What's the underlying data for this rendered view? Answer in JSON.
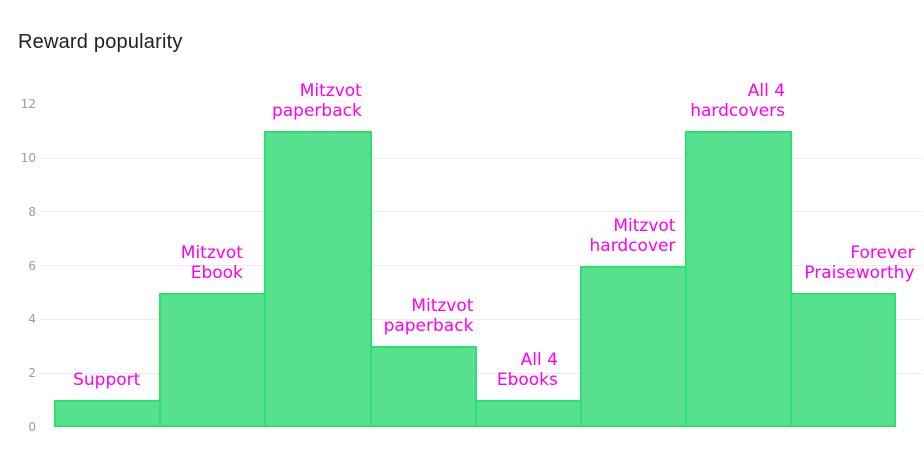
{
  "page": {
    "title": "Reward popularity"
  },
  "chart_data": {
    "type": "bar",
    "title": "Reward popularity",
    "categories": [
      "Support",
      "Mitzvot Ebook",
      "Mitzvot paperback",
      "Mitzvot paperback",
      "All 4 Ebooks",
      "Mitzvot hardcover",
      "All 4 hardcovers",
      "Forever Praiseworthy"
    ],
    "values": [
      1,
      5,
      11,
      3,
      1,
      6,
      11,
      5
    ],
    "label_lines": [
      [
        "Support"
      ],
      [
        "Mitzvot",
        "Ebook"
      ],
      [
        "Mitzvot",
        "paperback"
      ],
      [
        "Mitzvot",
        "paperback"
      ],
      [
        "All 4",
        "Ebooks"
      ],
      [
        "Mitzvot",
        "hardcover"
      ],
      [
        "All 4",
        "hardcovers"
      ],
      [
        "Forever",
        "Praiseworthy"
      ]
    ],
    "xlabel": "",
    "ylabel": "",
    "ylim": [
      0,
      12
    ],
    "yticks": [
      0,
      2,
      4,
      6,
      8,
      10,
      12
    ],
    "gridline_values": [
      2,
      4,
      6,
      8,
      10
    ],
    "legend": "none",
    "grid": "horizontal-only",
    "colors": {
      "bar_fill": "#57e08e",
      "bar_border": "#2ae26c",
      "bar_label": "#ff00f0",
      "axis_text": "#9b9b9b",
      "gridline": "#ececec",
      "title": "#212121",
      "background": "#ffffff"
    }
  }
}
